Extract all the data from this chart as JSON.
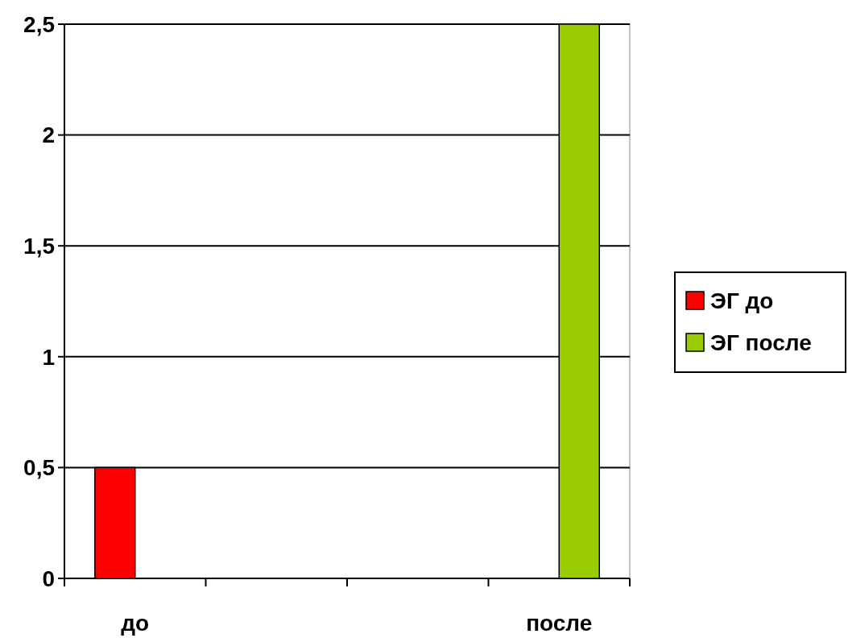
{
  "chart_data": {
    "type": "bar",
    "categories": [
      "до",
      null,
      null,
      "после"
    ],
    "series": [
      {
        "name": "ЭГ до",
        "color": "#ff0000",
        "values": [
          0.5,
          null,
          null,
          null
        ]
      },
      {
        "name": "ЭГ после",
        "color": "#99cc00",
        "values": [
          null,
          null,
          null,
          2.5
        ]
      }
    ],
    "ylim": [
      0,
      2.5
    ],
    "yticks": [
      0,
      {
        "value": 0.5,
        "label": "0,5"
      },
      1,
      {
        "value": 1.5,
        "label": "1,5"
      },
      2,
      {
        "value": 2.5,
        "label": "2,5"
      }
    ],
    "grid": "y",
    "legend": "right"
  }
}
